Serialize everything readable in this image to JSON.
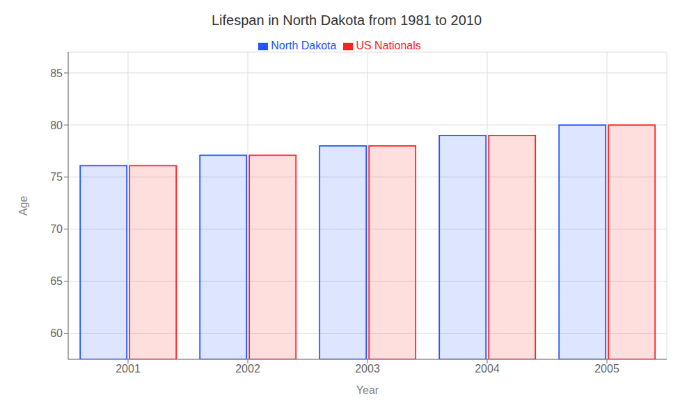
{
  "chart_data": {
    "type": "bar",
    "title": "Lifespan in North Dakota from 1981 to 2010",
    "xlabel": "Year",
    "ylabel": "Age",
    "categories": [
      "2001",
      "2002",
      "2003",
      "2004",
      "2005"
    ],
    "series": [
      {
        "name": "North Dakota",
        "color": "#2255ff",
        "values": [
          76.1,
          77.1,
          78.0,
          79.0,
          80.0
        ]
      },
      {
        "name": "US Nationals",
        "color": "#ff2222",
        "values": [
          76.1,
          77.1,
          78.0,
          79.0,
          80.0
        ]
      }
    ],
    "ylim": [
      57.5,
      87
    ],
    "yticks": [
      60,
      65,
      70,
      75,
      80,
      85
    ],
    "grid": true,
    "legend": "top"
  }
}
